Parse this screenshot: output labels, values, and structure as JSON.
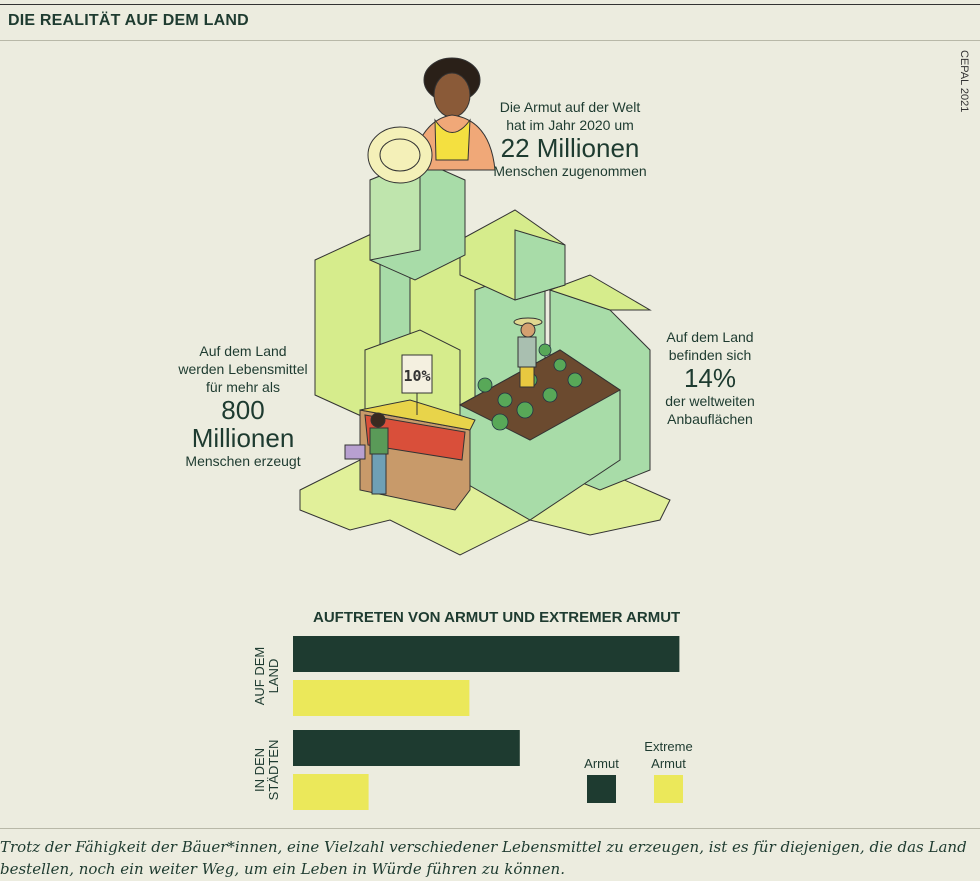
{
  "header": "DIE REALITÄT AUF DEM LAND",
  "source": "CEPAL 2021",
  "annotations": {
    "poverty": {
      "line1": "Die Armut auf der Welt",
      "line2": "hat im Jahr 2020 um",
      "big": "22 Millionen",
      "line3": "Menschen zugenommen"
    },
    "food": {
      "line1": "Auf dem Land",
      "line2": "werden Lebensmittel",
      "line3": "für mehr als",
      "big1": "800",
      "big2": "Millionen",
      "line4": "Menschen erzeugt"
    },
    "land": {
      "line1": "Auf dem Land",
      "line2": "befinden sich",
      "big": "14%",
      "line3": "der weltweiten",
      "line4": "Anbauflächen"
    }
  },
  "price_sign": "10%",
  "colors": {
    "dark": "#1e3b30",
    "yellow": "#ebe85a",
    "light_green": "#d6ec8c",
    "mid_green": "#a8dca8",
    "bg": "#ececdf"
  },
  "chart_data": {
    "type": "bar",
    "orientation": "horizontal",
    "title": "AUFTRETEN VON ARMUT UND EXTREMER ARMUT",
    "categories": [
      "AUF DEM LAND",
      "IN DEN STÄDTEN"
    ],
    "series": [
      {
        "name": "Armut",
        "color": "#1e3b30",
        "values": [
          46,
          27
        ]
      },
      {
        "name": "Extreme Armut",
        "color": "#ebe85a",
        "values": [
          21,
          9
        ]
      }
    ],
    "xlim": [
      0,
      50
    ],
    "grid": false,
    "legend": "bottom-right"
  },
  "footer": {
    "line1": "Trotz der Fähigkeit der Bäuer*innen, eine Vielzahl verschiedener Lebensmittel zu erzeugen, ist es für diejenigen, die das Land",
    "line2": "bestellen, noch ein weiter Weg, um ein Leben in Würde führen zu können."
  }
}
